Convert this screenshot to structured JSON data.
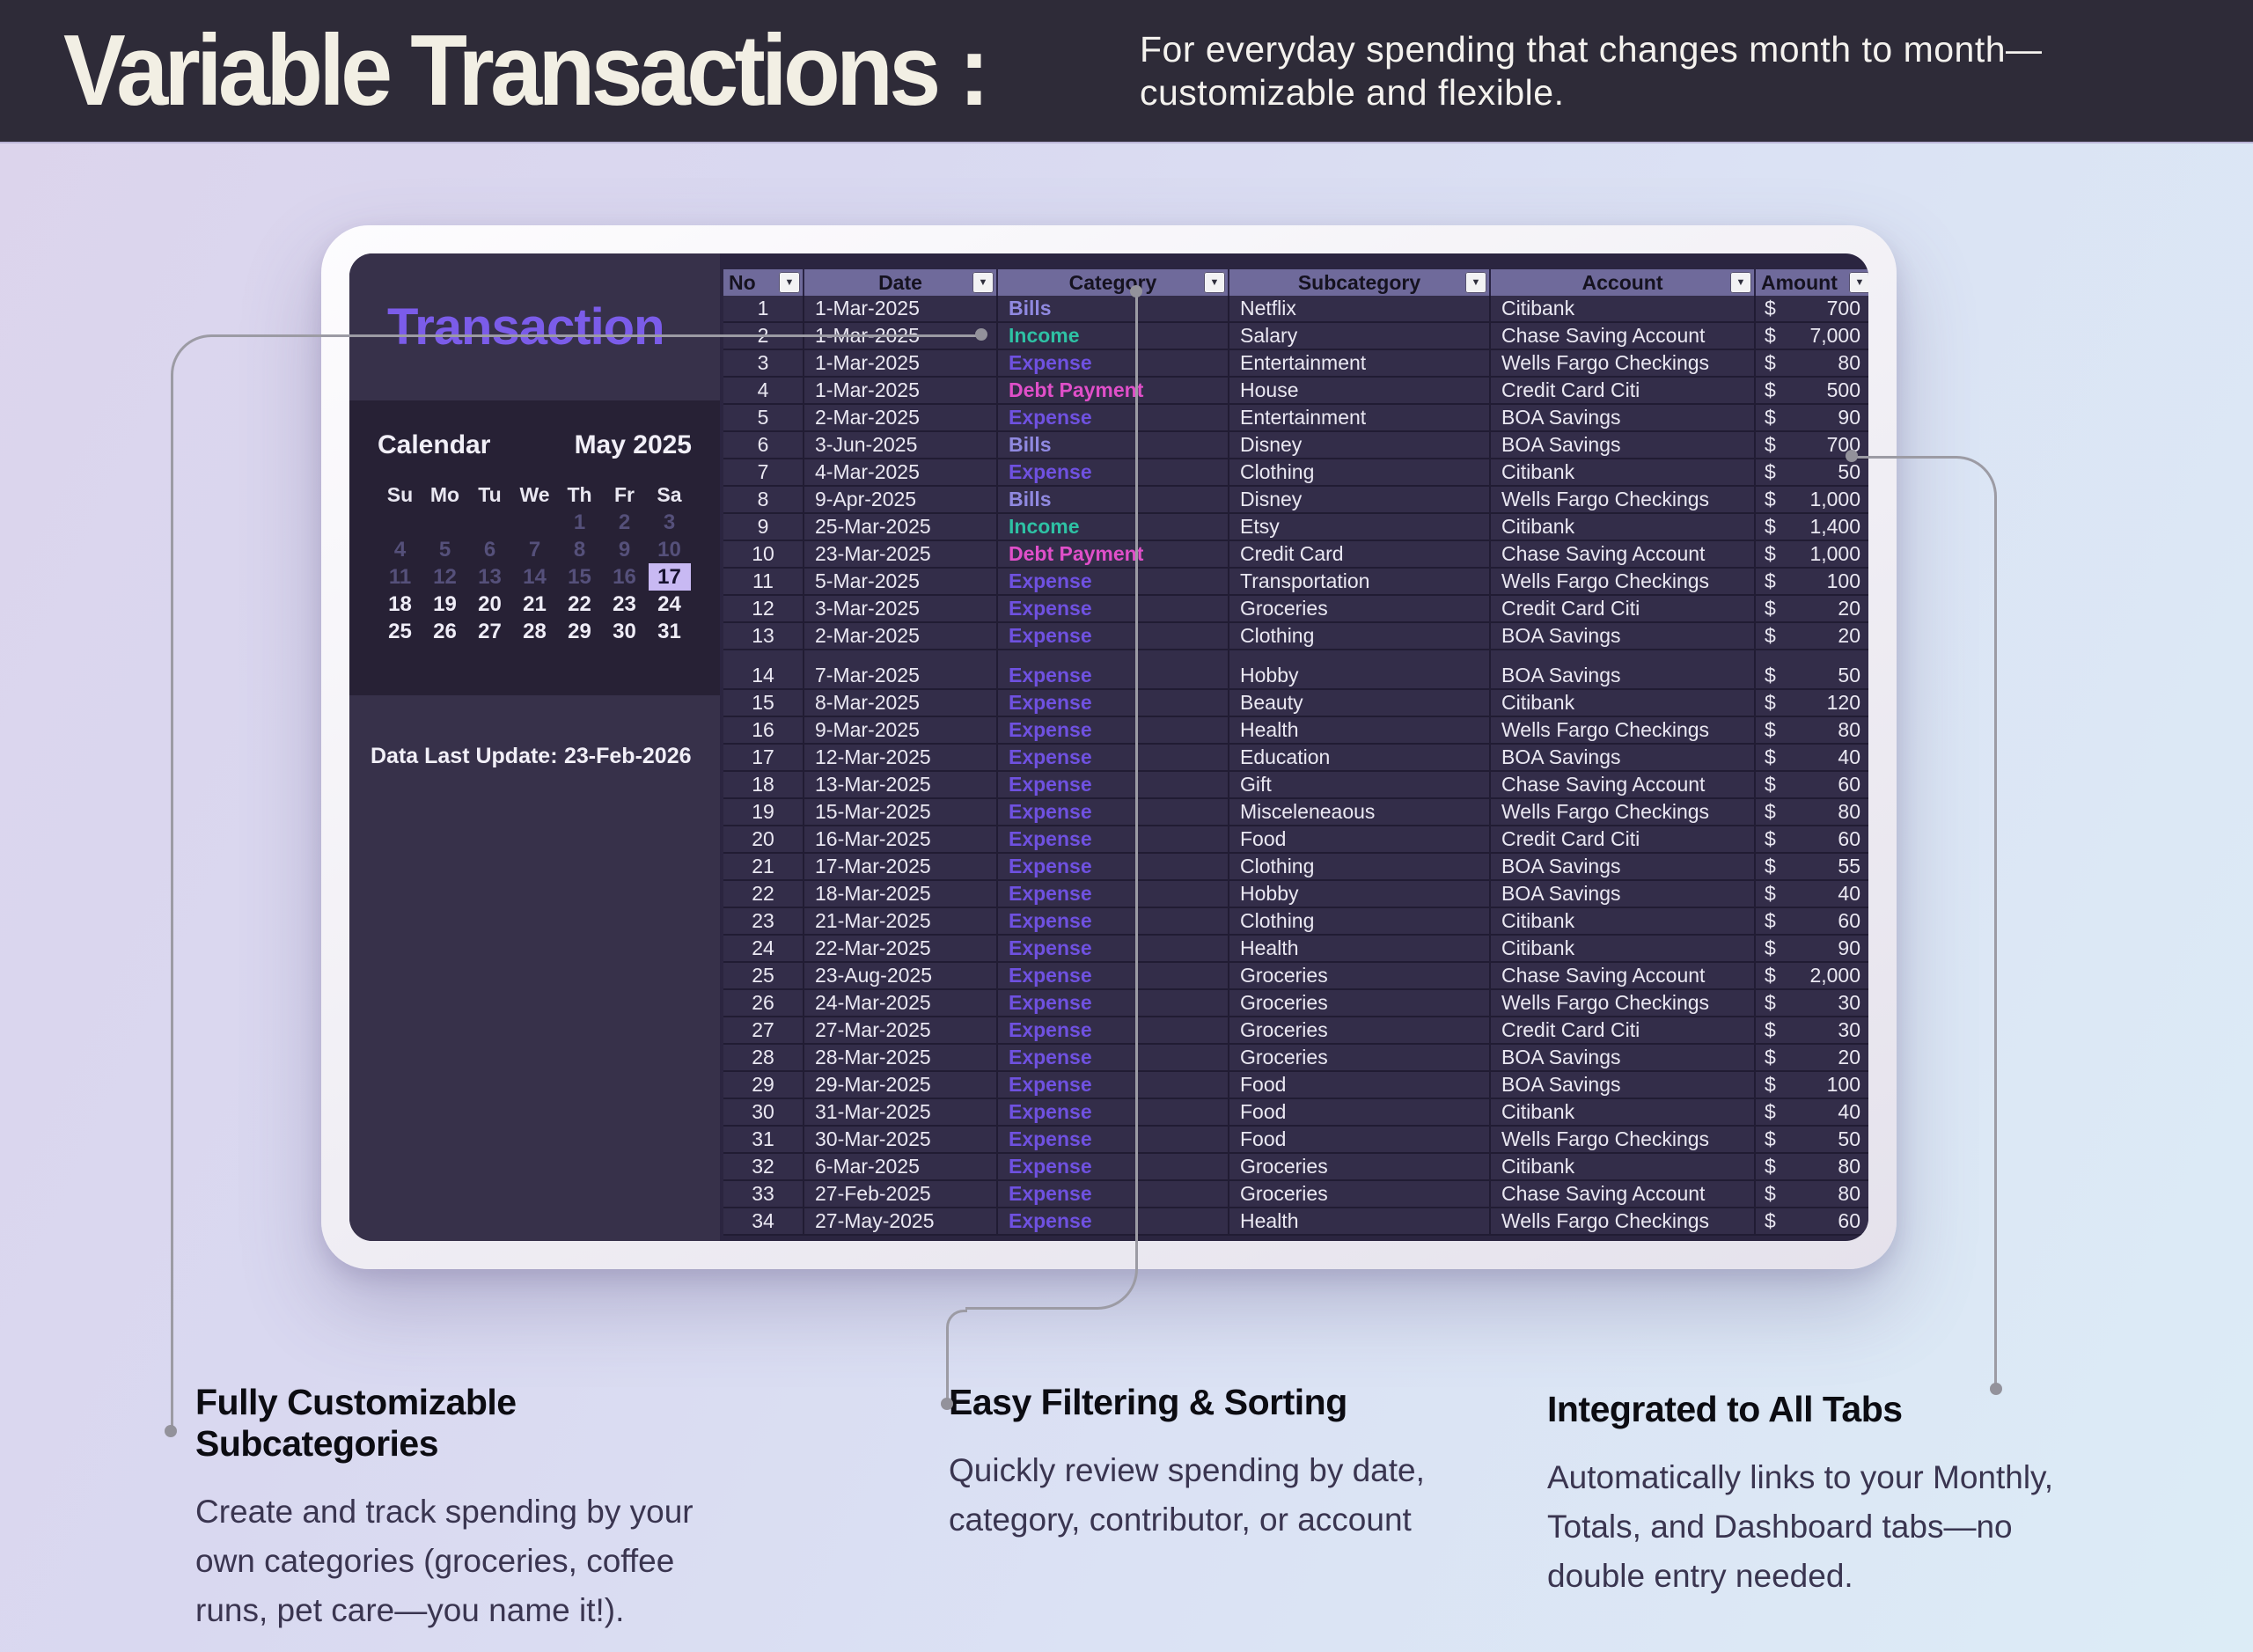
{
  "header": {
    "title": "Variable Transactions :",
    "subtitle_line1": "For everyday spending that changes month to month—",
    "subtitle_line2": "customizable and flexible."
  },
  "panel": {
    "title": "Transaction",
    "calendar": {
      "label": "Calendar",
      "month": "May 2025",
      "day_headers": [
        "Su",
        "Mo",
        "Tu",
        "We",
        "Th",
        "Fr",
        "Sa"
      ],
      "weeks": [
        [
          "",
          "",
          "",
          "",
          "1",
          "2",
          "3"
        ],
        [
          "4",
          "5",
          "6",
          "7",
          "8",
          "9",
          "10"
        ],
        [
          "11",
          "12",
          "13",
          "14",
          "15",
          "16",
          "17"
        ],
        [
          "18",
          "19",
          "20",
          "21",
          "22",
          "23",
          "24"
        ],
        [
          "25",
          "26",
          "27",
          "28",
          "29",
          "30",
          "31"
        ]
      ],
      "dim_until": 16,
      "highlight_day": 17,
      "highlight_bg": "#c8b9f3"
    },
    "last_update_label": "Data Last Update:",
    "last_update_value": "23-Feb-2026"
  },
  "table": {
    "columns": [
      "No",
      "Date",
      "Category",
      "Subcategory",
      "Account",
      "Amount"
    ],
    "filter_icon": "filter-dropdown-icon",
    "currency": "$",
    "gap_after_row": 13,
    "category_colors": {
      "Bills": "#9089e0",
      "Income": "#2ec1a4",
      "Expense": "#6f51e0",
      "Debt Payment": "#e04fc9"
    },
    "rows": [
      [
        "1",
        "1-Mar-2025",
        "Bills",
        "Netflix",
        "Citibank",
        "700"
      ],
      [
        "2",
        "1-Mar-2025",
        "Income",
        "Salary",
        "Chase Saving Account",
        "7,000"
      ],
      [
        "3",
        "1-Mar-2025",
        "Expense",
        "Entertainment",
        "Wells Fargo Checkings",
        "80"
      ],
      [
        "4",
        "1-Mar-2025",
        "Debt Payment",
        "House",
        "Credit Card Citi",
        "500"
      ],
      [
        "5",
        "2-Mar-2025",
        "Expense",
        "Entertainment",
        "BOA Savings",
        "90"
      ],
      [
        "6",
        "3-Jun-2025",
        "Bills",
        "Disney",
        "BOA Savings",
        "700"
      ],
      [
        "7",
        "4-Mar-2025",
        "Expense",
        "Clothing",
        "Citibank",
        "50"
      ],
      [
        "8",
        "9-Apr-2025",
        "Bills",
        "Disney",
        "Wells Fargo Checkings",
        "1,000"
      ],
      [
        "9",
        "25-Mar-2025",
        "Income",
        "Etsy",
        "Citibank",
        "1,400"
      ],
      [
        "10",
        "23-Mar-2025",
        "Debt Payment",
        "Credit Card",
        "Chase Saving Account",
        "1,000"
      ],
      [
        "11",
        "5-Mar-2025",
        "Expense",
        "Transportation",
        "Wells Fargo Checkings",
        "100"
      ],
      [
        "12",
        "3-Mar-2025",
        "Expense",
        "Groceries",
        "Credit Card Citi",
        "20"
      ],
      [
        "13",
        "2-Mar-2025",
        "Expense",
        "Clothing",
        "BOA Savings",
        "20"
      ],
      [
        "14",
        "7-Mar-2025",
        "Expense",
        "Hobby",
        "BOA Savings",
        "50"
      ],
      [
        "15",
        "8-Mar-2025",
        "Expense",
        "Beauty",
        "Citibank",
        "120"
      ],
      [
        "16",
        "9-Mar-2025",
        "Expense",
        "Health",
        "Wells Fargo Checkings",
        "80"
      ],
      [
        "17",
        "12-Mar-2025",
        "Expense",
        "Education",
        "BOA Savings",
        "40"
      ],
      [
        "18",
        "13-Mar-2025",
        "Expense",
        "Gift",
        "Chase Saving Account",
        "60"
      ],
      [
        "19",
        "15-Mar-2025",
        "Expense",
        "Misceleneaous",
        "Wells Fargo Checkings",
        "80"
      ],
      [
        "20",
        "16-Mar-2025",
        "Expense",
        "Food",
        "Credit Card Citi",
        "60"
      ],
      [
        "21",
        "17-Mar-2025",
        "Expense",
        "Clothing",
        "BOA Savings",
        "55"
      ],
      [
        "22",
        "18-Mar-2025",
        "Expense",
        "Hobby",
        "BOA Savings",
        "40"
      ],
      [
        "23",
        "21-Mar-2025",
        "Expense",
        "Clothing",
        "Citibank",
        "60"
      ],
      [
        "24",
        "22-Mar-2025",
        "Expense",
        "Health",
        "Citibank",
        "90"
      ],
      [
        "25",
        "23-Aug-2025",
        "Expense",
        "Groceries",
        "Chase Saving Account",
        "2,000"
      ],
      [
        "26",
        "24-Mar-2025",
        "Expense",
        "Groceries",
        "Wells Fargo Checkings",
        "30"
      ],
      [
        "27",
        "27-Mar-2025",
        "Expense",
        "Groceries",
        "Credit Card Citi",
        "30"
      ],
      [
        "28",
        "28-Mar-2025",
        "Expense",
        "Groceries",
        "BOA Savings",
        "20"
      ],
      [
        "29",
        "29-Mar-2025",
        "Expense",
        "Food",
        "BOA Savings",
        "100"
      ],
      [
        "30",
        "31-Mar-2025",
        "Expense",
        "Food",
        "Citibank",
        "40"
      ],
      [
        "31",
        "30-Mar-2025",
        "Expense",
        "Food",
        "Wells Fargo Checkings",
        "50"
      ],
      [
        "32",
        "6-Mar-2025",
        "Expense",
        "Groceries",
        "Citibank",
        "80"
      ],
      [
        "33",
        "27-Feb-2025",
        "Expense",
        "Groceries",
        "Chase Saving Account",
        "80"
      ],
      [
        "34",
        "27-May-2025",
        "Expense",
        "Health",
        "Wells Fargo Checkings",
        "60"
      ]
    ]
  },
  "callouts": [
    {
      "heading": "Fully Customizable Subcategories",
      "body": "Create and track spending by your own categories (groceries, coffee runs, pet care—you name it!)."
    },
    {
      "heading": "Easy Filtering & Sorting",
      "body": "Quickly review spending by date, category, contributor, or account"
    },
    {
      "heading": "Integrated to All Tabs",
      "body": "Automatically links to your Monthly, Totals, and Dashboard tabs—no double entry needed."
    }
  ]
}
